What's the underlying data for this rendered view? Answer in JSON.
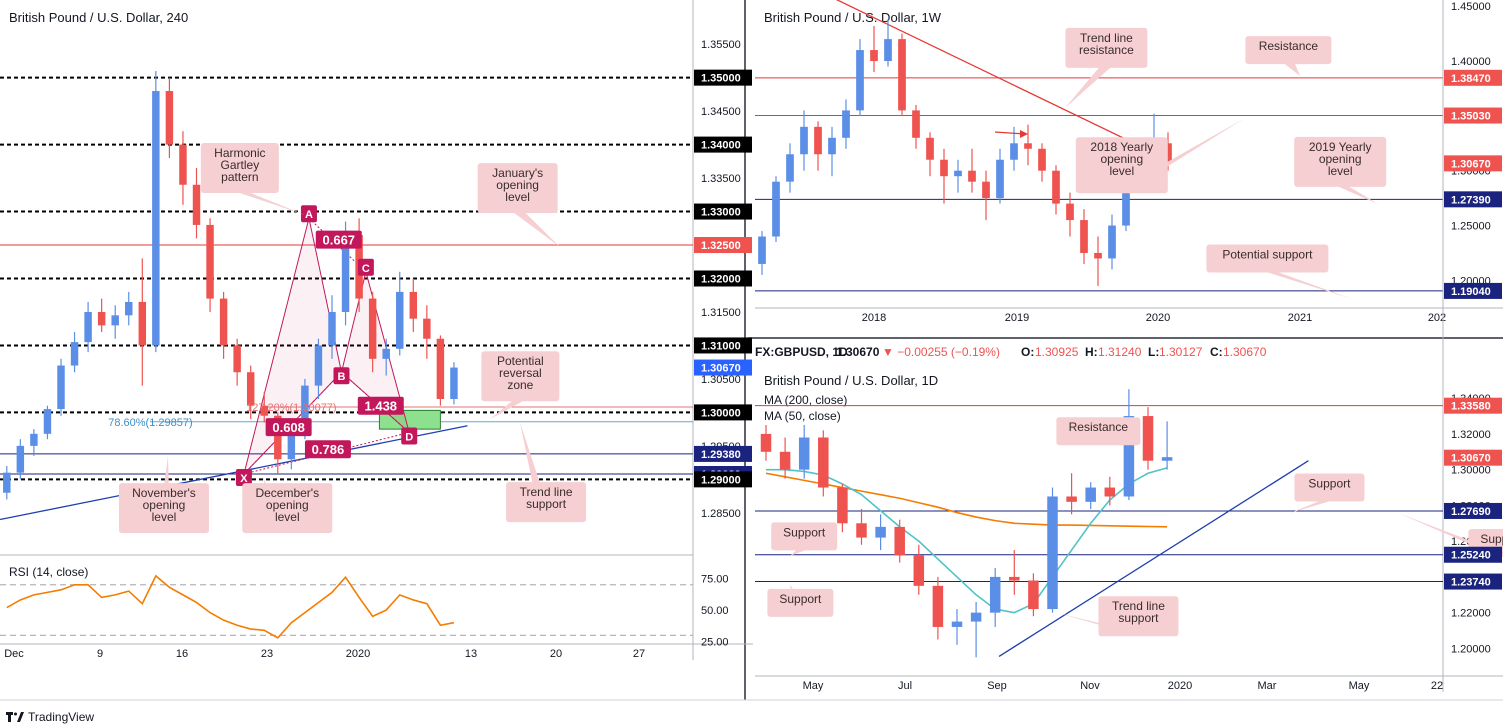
{
  "branding": {
    "name": "TradingView"
  },
  "colors": {
    "up": "#5b8ee6",
    "down": "#ef5350",
    "res_line": "#e53935",
    "sup_line": "#1a237e",
    "trend": "#1e3fae",
    "rsi": "#f57c00",
    "ma200": "#f57c00",
    "ma50": "#4fc3c7",
    "pattern": "#c2185b",
    "callout_bg": "#f6cfd2",
    "callout_text": "#3a2c2c",
    "tag_red": "#ef5350",
    "tag_navy": "#1a237e",
    "tag_black": "#000000",
    "tag_blue": "#2962ff"
  },
  "chart_data": [
    {
      "id": "h4",
      "type": "candlestick",
      "title": "British Pound / U.S. Dollar, 240",
      "ylim": [
        1.279,
        1.361
      ],
      "x_ticks": [
        "Dec",
        "9",
        "16",
        "23",
        "2020",
        "13",
        "20",
        "27"
      ],
      "y_ticks": [
        "1.35500",
        "1.34500",
        "1.33500",
        "1.32500",
        "1.31500",
        "1.30500",
        "1.29500",
        "1.28500"
      ],
      "levels": [
        {
          "price": 1.35,
          "label": "1.35000",
          "tag": "black"
        },
        {
          "price": 1.34,
          "label": "1.34000",
          "tag": "black"
        },
        {
          "price": 1.33,
          "label": "1.33000",
          "tag": "black"
        },
        {
          "price": 1.325,
          "label": "1.32500",
          "tag": "red"
        },
        {
          "price": 1.32,
          "label": "1.32000",
          "tag": "black"
        },
        {
          "price": 1.31,
          "label": "1.31000",
          "tag": "black"
        },
        {
          "price": 1.3067,
          "label": "1.30670",
          "tag": "blue"
        },
        {
          "price": 1.3,
          "label": "1.30000",
          "tag": "black"
        },
        {
          "price": 1.2938,
          "label": "1.29380",
          "tag": "navy"
        },
        {
          "price": 1.2908,
          "label": "1.29080",
          "tag": "navy"
        },
        {
          "price": 1.29,
          "label": "1.29000",
          "tag": "black"
        }
      ],
      "pattern_points": [
        {
          "name": "X",
          "price": 1.2908,
          "i": 17.5
        },
        {
          "name": "A",
          "price": 1.329,
          "i": 22.3
        },
        {
          "name": "B",
          "price": 1.306,
          "i": 24.7
        },
        {
          "name": "C",
          "price": 1.321,
          "i": 26.5
        },
        {
          "name": "D",
          "price": 1.297,
          "i": 29.7
        }
      ],
      "ratios": [
        {
          "text": "0.667",
          "price": 1.3258,
          "i": 24.5
        },
        {
          "text": "1.438",
          "price": 1.301,
          "i": 27.6
        },
        {
          "text": "0.608",
          "price": 1.2978,
          "i": 20.8
        },
        {
          "text": "0.786",
          "price": 1.2945,
          "i": 23.7
        }
      ],
      "fib_labels": [
        {
          "text": "78.60%(1.29857)",
          "price": 1.2986,
          "i": 10.6
        },
        {
          "text": "127.20%(1.30077)",
          "price": 1.3008,
          "i": 21.0
        }
      ],
      "annotations": [
        {
          "text": "Harmonic\nGartley\npattern",
          "price": 1.3365,
          "i": 17.2
        },
        {
          "text": "January's\nopening\nlevel",
          "price": 1.3335,
          "i": 37.7
        },
        {
          "text": "Potential\nreversal\nzone",
          "price": 1.3054,
          "i": 37.9
        },
        {
          "text": "November's\nopening\nlevel",
          "price": 1.2857,
          "i": 11.6
        },
        {
          "text": "December's\nopening\nlevel",
          "price": 1.2857,
          "i": 20.7
        },
        {
          "text": "Trend line\nsupport",
          "price": 1.2866,
          "i": 39.8
        }
      ],
      "prz": {
        "top": 1.3003,
        "bottom": 1.2975,
        "i0": 27.5,
        "i1": 32.0
      },
      "trendline": [
        [
          -0.5,
          1.284
        ],
        [
          34.0,
          1.298
        ]
      ],
      "candles": [
        {
          "o": 1.288,
          "h": 1.292,
          "l": 1.287,
          "c": 1.291
        },
        {
          "o": 1.291,
          "h": 1.296,
          "l": 1.29,
          "c": 1.295
        },
        {
          "o": 1.295,
          "h": 1.2975,
          "l": 1.2935,
          "c": 1.2968
        },
        {
          "o": 1.2968,
          "h": 1.301,
          "l": 1.296,
          "c": 1.3005
        },
        {
          "o": 1.3005,
          "h": 1.308,
          "l": 1.2995,
          "c": 1.307
        },
        {
          "o": 1.307,
          "h": 1.312,
          "l": 1.306,
          "c": 1.3105
        },
        {
          "o": 1.3105,
          "h": 1.3165,
          "l": 1.309,
          "c": 1.315
        },
        {
          "o": 1.315,
          "h": 1.317,
          "l": 1.312,
          "c": 1.313
        },
        {
          "o": 1.313,
          "h": 1.316,
          "l": 1.311,
          "c": 1.3145
        },
        {
          "o": 1.3145,
          "h": 1.318,
          "l": 1.313,
          "c": 1.3165
        },
        {
          "o": 1.3165,
          "h": 1.323,
          "l": 1.304,
          "c": 1.31
        },
        {
          "o": 1.31,
          "h": 1.351,
          "l": 1.309,
          "c": 1.348
        },
        {
          "o": 1.348,
          "h": 1.35,
          "l": 1.338,
          "c": 1.34
        },
        {
          "o": 1.34,
          "h": 1.342,
          "l": 1.331,
          "c": 1.334
        },
        {
          "o": 1.334,
          "h": 1.3365,
          "l": 1.326,
          "c": 1.328
        },
        {
          "o": 1.328,
          "h": 1.329,
          "l": 1.315,
          "c": 1.317
        },
        {
          "o": 1.317,
          "h": 1.318,
          "l": 1.308,
          "c": 1.31
        },
        {
          "o": 1.31,
          "h": 1.311,
          "l": 1.304,
          "c": 1.306
        },
        {
          "o": 1.306,
          "h": 1.307,
          "l": 1.299,
          "c": 1.301
        },
        {
          "o": 1.301,
          "h": 1.303,
          "l": 1.2985,
          "c": 1.2995
        },
        {
          "o": 1.2995,
          "h": 1.3,
          "l": 1.2908,
          "c": 1.293
        },
        {
          "o": 1.293,
          "h": 1.299,
          "l": 1.2915,
          "c": 1.298
        },
        {
          "o": 1.298,
          "h": 1.305,
          "l": 1.296,
          "c": 1.304
        },
        {
          "o": 1.304,
          "h": 1.311,
          "l": 1.302,
          "c": 1.31
        },
        {
          "o": 1.31,
          "h": 1.3175,
          "l": 1.308,
          "c": 1.315
        },
        {
          "o": 1.315,
          "h": 1.3285,
          "l": 1.313,
          "c": 1.3265
        },
        {
          "o": 1.3265,
          "h": 1.329,
          "l": 1.315,
          "c": 1.317
        },
        {
          "o": 1.317,
          "h": 1.318,
          "l": 1.306,
          "c": 1.308
        },
        {
          "o": 1.308,
          "h": 1.311,
          "l": 1.3055,
          "c": 1.3095
        },
        {
          "o": 1.3095,
          "h": 1.321,
          "l": 1.3085,
          "c": 1.318
        },
        {
          "o": 1.318,
          "h": 1.32,
          "l": 1.312,
          "c": 1.314
        },
        {
          "o": 1.314,
          "h": 1.316,
          "l": 1.308,
          "c": 1.311
        },
        {
          "o": 1.311,
          "h": 1.3115,
          "l": 1.301,
          "c": 1.302
        },
        {
          "o": 1.302,
          "h": 1.3075,
          "l": 1.3012,
          "c": 1.3067
        }
      ],
      "rsi": {
        "label": "RSI (14, close)",
        "ylim": [
          20,
          88
        ],
        "ticks": [
          "75.00",
          "50.00",
          "25.00"
        ],
        "bands": [
          70,
          30
        ],
        "values": [
          52,
          58,
          62,
          64,
          66,
          70,
          70,
          60,
          62,
          65,
          55,
          77,
          68,
          62,
          56,
          48,
          42,
          38,
          35,
          34,
          28,
          40,
          48,
          56,
          64,
          76,
          60,
          45,
          50,
          62,
          58,
          55,
          38,
          40
        ]
      }
    },
    {
      "id": "w1",
      "type": "candlestick",
      "title": "British Pound / U.S. Dollar, 1W",
      "ylim": [
        1.173,
        1.452
      ],
      "x_ticks": [
        "2018",
        "2019",
        "2020",
        "2021",
        "202"
      ],
      "y_ticks": [
        "1.45000",
        "1.40000",
        "1.35000",
        "1.30000",
        "1.25000",
        "1.20000"
      ],
      "levels": [
        {
          "price": 1.3847,
          "label": "1.38470",
          "tag": "red"
        },
        {
          "price": 1.3503,
          "label": "1.35030",
          "tag": "red"
        },
        {
          "price": 1.3067,
          "label": "1.30670",
          "tag": "red"
        },
        {
          "price": 1.2739,
          "label": "1.27390",
          "tag": "navy"
        },
        {
          "price": 1.1904,
          "label": "1.19040",
          "tag": "navy"
        }
      ],
      "annotations": [
        {
          "text": "Trend line\nresistance",
          "price": 1.412,
          "i": 24.6
        },
        {
          "text": "Resistance",
          "price": 1.41,
          "i": 37.6
        },
        {
          "text": "2018 Yearly\nopening\nlevel",
          "price": 1.305,
          "i": 25.7
        },
        {
          "text": "2019 Yearly\nopening\nlevel",
          "price": 1.308,
          "i": 41.3
        },
        {
          "text": "Potential support",
          "price": 1.22,
          "i": 36.1
        }
      ],
      "trendline": [
        [
          5.0,
          1.458
        ],
        [
          28.7,
          1.312
        ]
      ],
      "candles": [
        {
          "o": 1.215,
          "h": 1.245,
          "l": 1.205,
          "c": 1.24
        },
        {
          "o": 1.24,
          "h": 1.295,
          "l": 1.235,
          "c": 1.29
        },
        {
          "o": 1.29,
          "h": 1.325,
          "l": 1.28,
          "c": 1.315
        },
        {
          "o": 1.315,
          "h": 1.355,
          "l": 1.3,
          "c": 1.34
        },
        {
          "o": 1.34,
          "h": 1.345,
          "l": 1.3,
          "c": 1.315
        },
        {
          "o": 1.315,
          "h": 1.34,
          "l": 1.295,
          "c": 1.33
        },
        {
          "o": 1.33,
          "h": 1.365,
          "l": 1.32,
          "c": 1.355
        },
        {
          "o": 1.355,
          "h": 1.42,
          "l": 1.35,
          "c": 1.41
        },
        {
          "o": 1.41,
          "h": 1.432,
          "l": 1.39,
          "c": 1.4
        },
        {
          "o": 1.4,
          "h": 1.438,
          "l": 1.395,
          "c": 1.42
        },
        {
          "o": 1.42,
          "h": 1.425,
          "l": 1.35,
          "c": 1.355
        },
        {
          "o": 1.355,
          "h": 1.36,
          "l": 1.32,
          "c": 1.33
        },
        {
          "o": 1.33,
          "h": 1.335,
          "l": 1.295,
          "c": 1.31
        },
        {
          "o": 1.31,
          "h": 1.32,
          "l": 1.27,
          "c": 1.295
        },
        {
          "o": 1.295,
          "h": 1.31,
          "l": 1.28,
          "c": 1.3
        },
        {
          "o": 1.3,
          "h": 1.32,
          "l": 1.28,
          "c": 1.29
        },
        {
          "o": 1.29,
          "h": 1.3,
          "l": 1.255,
          "c": 1.275
        },
        {
          "o": 1.275,
          "h": 1.32,
          "l": 1.27,
          "c": 1.31
        },
        {
          "o": 1.31,
          "h": 1.34,
          "l": 1.3,
          "c": 1.325
        },
        {
          "o": 1.325,
          "h": 1.342,
          "l": 1.305,
          "c": 1.32
        },
        {
          "o": 1.32,
          "h": 1.325,
          "l": 1.29,
          "c": 1.3
        },
        {
          "o": 1.3,
          "h": 1.305,
          "l": 1.26,
          "c": 1.27
        },
        {
          "o": 1.27,
          "h": 1.28,
          "l": 1.24,
          "c": 1.255
        },
        {
          "o": 1.255,
          "h": 1.265,
          "l": 1.215,
          "c": 1.225
        },
        {
          "o": 1.225,
          "h": 1.24,
          "l": 1.195,
          "c": 1.22
        },
        {
          "o": 1.22,
          "h": 1.26,
          "l": 1.21,
          "c": 1.25
        },
        {
          "o": 1.25,
          "h": 1.3,
          "l": 1.245,
          "c": 1.29
        },
        {
          "o": 1.29,
          "h": 1.31,
          "l": 1.28,
          "c": 1.29
        },
        {
          "o": 1.29,
          "h": 1.352,
          "l": 1.28,
          "c": 1.325
        },
        {
          "o": 1.325,
          "h": 1.335,
          "l": 1.3,
          "c": 1.307
        }
      ]
    },
    {
      "id": "d1",
      "type": "candlestick",
      "title": "British Pound / U.S. Dollar, 1D",
      "legend": [
        "MA (200, close)",
        "MA (50, close)"
      ],
      "ohlc_line": {
        "symbol": "FX:GBPUSD, 1D",
        "price": "1.30670",
        "change": "▼ −0.00255 (−0.19%)",
        "o_label": "O:",
        "o": "1.30925",
        "h_label": "H:",
        "h": "1.31240",
        "l_label": "L:",
        "l": "1.30127",
        "c_label": "C:",
        "c": "1.30670"
      },
      "ylim": [
        1.184,
        1.358
      ],
      "x_ticks": [
        "May",
        "Jul",
        "Sep",
        "Nov",
        "2020",
        "Mar",
        "May",
        "22"
      ],
      "y_ticks": [
        "1.34000",
        "1.32000",
        "1.30000",
        "1.28000",
        "1.26000",
        "1.24000",
        "1.22000",
        "1.20000"
      ],
      "levels": [
        {
          "price": 1.3358,
          "label": "1.33580",
          "tag": "red"
        },
        {
          "price": 1.3067,
          "label": "1.30670",
          "tag": "red"
        },
        {
          "price": 1.2769,
          "label": "1.27690",
          "tag": "navy"
        },
        {
          "price": 1.2524,
          "label": "1.25240",
          "tag": "navy"
        },
        {
          "price": 1.2374,
          "label": "1.23740",
          "tag": "navy"
        }
      ],
      "annotations": [
        {
          "text": "Resistance",
          "price": 1.3215,
          "i": 17.4
        },
        {
          "text": "Support",
          "price": 1.29,
          "i": 29.5
        },
        {
          "text": "Support",
          "price": 1.2627,
          "i": 2.0
        },
        {
          "text": "Support",
          "price": 1.259,
          "i": 38.5
        },
        {
          "text": "Support",
          "price": 1.2255,
          "i": 1.8
        },
        {
          "text": "Trend line\nsupport",
          "price": 1.218,
          "i": 19.5
        }
      ],
      "trendline": [
        [
          12.2,
          1.1955
        ],
        [
          28.4,
          1.305
        ]
      ],
      "ma200": [
        1.298,
        1.296,
        1.294,
        1.292,
        1.29,
        1.288,
        1.286,
        1.284,
        1.2815,
        1.279,
        1.276,
        1.2735,
        1.2715,
        1.27,
        1.2695,
        1.269,
        1.269,
        1.2688,
        1.2686,
        1.2684,
        1.2682,
        1.268
      ],
      "ma50": [
        1.3,
        1.3,
        1.299,
        1.297,
        1.292,
        1.286,
        1.277,
        1.268,
        1.26,
        1.25,
        1.24,
        1.23,
        1.222,
        1.22,
        1.225,
        1.24,
        1.255,
        1.27,
        1.283,
        1.292,
        1.298,
        1.301
      ],
      "candles": [
        {
          "o": 1.32,
          "h": 1.325,
          "l": 1.305,
          "c": 1.31
        },
        {
          "o": 1.31,
          "h": 1.318,
          "l": 1.295,
          "c": 1.3
        },
        {
          "o": 1.3,
          "h": 1.325,
          "l": 1.295,
          "c": 1.318
        },
        {
          "o": 1.318,
          "h": 1.322,
          "l": 1.285,
          "c": 1.29
        },
        {
          "o": 1.29,
          "h": 1.292,
          "l": 1.265,
          "c": 1.27
        },
        {
          "o": 1.27,
          "h": 1.278,
          "l": 1.258,
          "c": 1.262
        },
        {
          "o": 1.262,
          "h": 1.275,
          "l": 1.255,
          "c": 1.268
        },
        {
          "o": 1.268,
          "h": 1.272,
          "l": 1.248,
          "c": 1.252
        },
        {
          "o": 1.252,
          "h": 1.258,
          "l": 1.23,
          "c": 1.235
        },
        {
          "o": 1.235,
          "h": 1.24,
          "l": 1.205,
          "c": 1.212
        },
        {
          "o": 1.212,
          "h": 1.222,
          "l": 1.202,
          "c": 1.215
        },
        {
          "o": 1.215,
          "h": 1.226,
          "l": 1.195,
          "c": 1.22
        },
        {
          "o": 1.22,
          "h": 1.245,
          "l": 1.212,
          "c": 1.24
        },
        {
          "o": 1.24,
          "h": 1.255,
          "l": 1.23,
          "c": 1.238
        },
        {
          "o": 1.238,
          "h": 1.242,
          "l": 1.218,
          "c": 1.222
        },
        {
          "o": 1.222,
          "h": 1.29,
          "l": 1.22,
          "c": 1.285
        },
        {
          "o": 1.285,
          "h": 1.298,
          "l": 1.275,
          "c": 1.282
        },
        {
          "o": 1.282,
          "h": 1.293,
          "l": 1.278,
          "c": 1.29
        },
        {
          "o": 1.29,
          "h": 1.296,
          "l": 1.28,
          "c": 1.285
        },
        {
          "o": 1.285,
          "h": 1.345,
          "l": 1.283,
          "c": 1.33
        },
        {
          "o": 1.33,
          "h": 1.335,
          "l": 1.3,
          "c": 1.305
        },
        {
          "o": 1.305,
          "h": 1.327,
          "l": 1.3,
          "c": 1.307
        }
      ]
    }
  ]
}
